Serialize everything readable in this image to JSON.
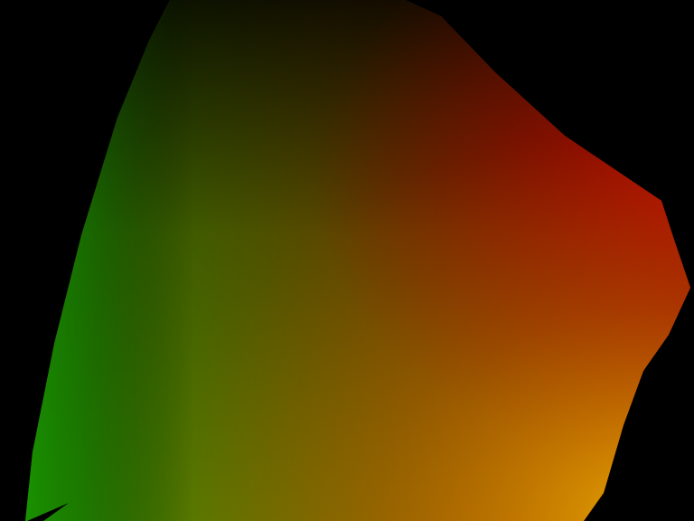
{
  "scene": {
    "background_color": "#000000",
    "surface": {
      "corner_colors": {
        "top_left": "#000000",
        "top_right": "#ff0000",
        "bottom_left": "#00cc00",
        "bottom_right": "#ffcc00"
      },
      "left_edge_highlight": "#1a9e00",
      "top_shadow": "#2a0800"
    }
  }
}
